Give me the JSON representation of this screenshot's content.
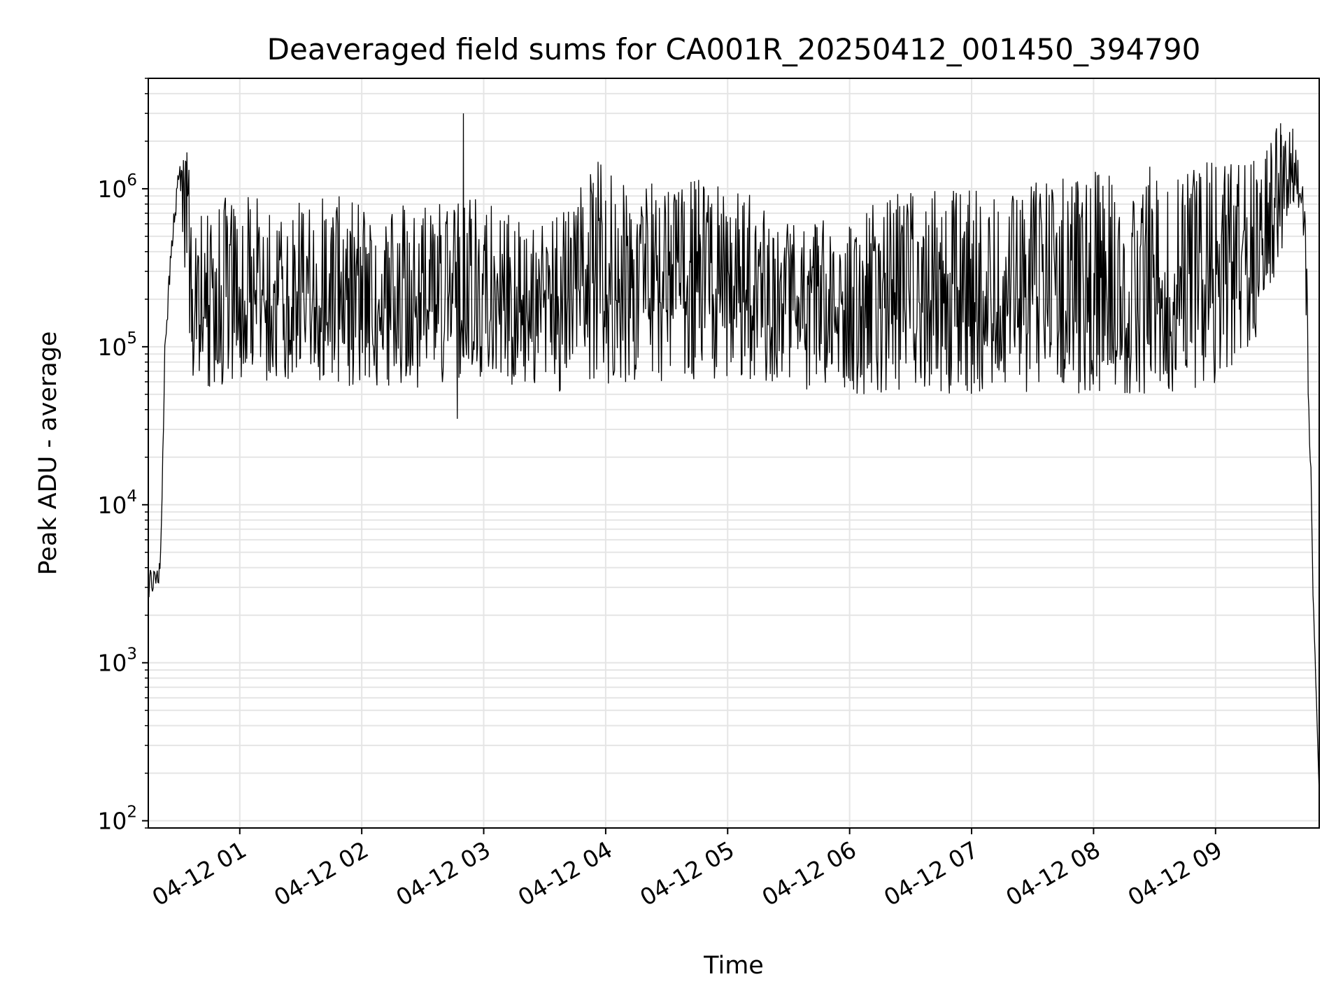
{
  "chart_data": {
    "type": "line",
    "title": "Deaveraged field sums for CA001R_20250412_001450_394790",
    "xlabel": "Time",
    "ylabel": "Peak ADU - average",
    "yscale": "log",
    "ylim": [
      90,
      5000000
    ],
    "xlim": [
      "2025-04-12T00:15:00",
      "2025-04-12T09:51:00"
    ],
    "grid": true,
    "line_color": "#000000",
    "grid_color": "#e5e5e5",
    "x_ticks": [
      {
        "value": "2025-04-12T01:00:00",
        "label": "04-12 01"
      },
      {
        "value": "2025-04-12T02:00:00",
        "label": "04-12 02"
      },
      {
        "value": "2025-04-12T03:00:00",
        "label": "04-12 03"
      },
      {
        "value": "2025-04-12T04:00:00",
        "label": "04-12 04"
      },
      {
        "value": "2025-04-12T05:00:00",
        "label": "04-12 05"
      },
      {
        "value": "2025-04-12T06:00:00",
        "label": "04-12 06"
      },
      {
        "value": "2025-04-12T07:00:00",
        "label": "04-12 07"
      },
      {
        "value": "2025-04-12T08:00:00",
        "label": "04-12 08"
      },
      {
        "value": "2025-04-12T09:00:00",
        "label": "04-12 09"
      }
    ],
    "y_ticks": [
      {
        "value": 100,
        "base": "10",
        "exp": "2"
      },
      {
        "value": 1000,
        "base": "10",
        "exp": "3"
      },
      {
        "value": 10000,
        "base": "10",
        "exp": "4"
      },
      {
        "value": 100000,
        "base": "10",
        "exp": "5"
      },
      {
        "value": 1000000,
        "base": "10",
        "exp": "6"
      }
    ],
    "series": [
      {
        "x": [
          "2025-04-12T00:15:00",
          "2025-04-12T00:17:00",
          "2025-04-12T00:19:00",
          "2025-04-12T00:20:00",
          "2025-04-12T00:21:00",
          "2025-04-12T00:23:00",
          "2025-04-12T00:25:00",
          "2025-04-12T00:27:00",
          "2025-04-12T00:30:00",
          "2025-04-12T00:34:00",
          "2025-04-12T00:37:00",
          "2025-04-12T00:40:00",
          "2025-04-12T00:42:00",
          "2025-04-12T00:45:00",
          "2025-04-12T00:50:00",
          "2025-04-12T01:00:00",
          "2025-04-12T01:30:00",
          "2025-04-12T02:00:00",
          "2025-04-12T02:30:00",
          "2025-04-12T03:00:00",
          "2025-04-12T03:30:00",
          "2025-04-12T04:00:00",
          "2025-04-12T04:30:00",
          "2025-04-12T05:00:00",
          "2025-04-12T05:30:00",
          "2025-04-12T06:00:00",
          "2025-04-12T06:30:00",
          "2025-04-12T07:00:00",
          "2025-04-12T07:30:00",
          "2025-04-12T08:00:00",
          "2025-04-12T08:30:00",
          "2025-04-12T09:00:00",
          "2025-04-12T09:20:00",
          "2025-04-12T09:30:00",
          "2025-04-12T09:38:00",
          "2025-04-12T09:42:00",
          "2025-04-12T09:45:00",
          "2025-04-12T09:48:00",
          "2025-04-12T09:51:00"
        ],
        "y": [
          2900,
          3000,
          3300,
          3500,
          5000,
          100000,
          250000,
          500000,
          1300000,
          800000,
          180000,
          150000,
          120000,
          110000,
          100000,
          120000,
          200000,
          150000,
          180000,
          150000,
          200000,
          250000,
          350000,
          200000,
          180000,
          150000,
          200000,
          200000,
          250000,
          200000,
          200000,
          250000,
          300000,
          700000,
          1200000,
          900000,
          200000,
          3000,
          150
        ],
        "trace_high_envelope": [
          4000,
          4000,
          4000,
          4000,
          6000,
          150000,
          400000,
          700000,
          1400000,
          1700000,
          800000,
          800000,
          850000,
          850000,
          900000,
          900000,
          900000,
          900000,
          900000,
          900000,
          600000,
          1700000,
          1200000,
          1100000,
          700000,
          700000,
          1000000,
          1000000,
          1200000,
          1300000,
          1400000,
          1500000,
          1600000,
          2600000,
          2400000,
          1500000,
          500000,
          3000,
          150
        ],
        "trace_low_envelope": [
          2600,
          2600,
          2800,
          3000,
          3500,
          60000,
          200000,
          450000,
          1000000,
          150000,
          60000,
          60000,
          60000,
          55000,
          55000,
          60000,
          60000,
          55000,
          55000,
          60000,
          50000,
          55000,
          60000,
          60000,
          55000,
          50000,
          50000,
          50000,
          50000,
          50000,
          50000,
          50000,
          100000,
          300000,
          800000,
          700000,
          100000,
          2500,
          150
        ],
        "notable_spikes": [
          {
            "x": "2025-04-12T02:50:00",
            "y": 3000000
          },
          {
            "x": "2025-04-12T02:47:00",
            "y": 35000
          },
          {
            "x": "2025-04-12T00:34:00",
            "y": 1700000
          },
          {
            "x": "2025-04-12T09:32:00",
            "y": 2600000
          },
          {
            "x": "2025-04-12T09:38:00",
            "y": 2400000
          }
        ]
      }
    ]
  }
}
